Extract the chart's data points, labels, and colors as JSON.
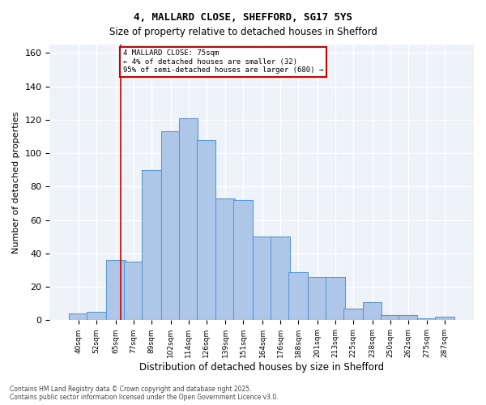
{
  "title1": "4, MALLARD CLOSE, SHEFFORD, SG17 5YS",
  "title2": "Size of property relative to detached houses in Shefford",
  "xlabel": "Distribution of detached houses by size in Shefford",
  "ylabel": "Number of detached properties",
  "bar_labels": [
    "40sqm",
    "52sqm",
    "65sqm",
    "77sqm",
    "89sqm",
    "102sqm",
    "114sqm",
    "126sqm",
    "139sqm",
    "151sqm",
    "164sqm",
    "176sqm",
    "188sqm",
    "201sqm",
    "213sqm",
    "225sqm",
    "238sqm",
    "250sqm",
    "262sqm",
    "275sqm",
    "287sqm"
  ],
  "bar_heights": [
    4,
    5,
    36,
    35,
    90,
    113,
    121,
    108,
    73,
    72,
    50,
    50,
    29,
    26,
    26,
    7,
    11,
    3,
    3,
    1,
    2
  ],
  "bar_color": "#aec6e8",
  "bar_edge_color": "#5b9bd5",
  "bg_color": "#eef2f9",
  "grid_color": "#ffffff",
  "vline_x": 75,
  "annotation_line1": "4 MALLARD CLOSE: 75sqm",
  "annotation_line2": "← 4% of detached houses are smaller (32)",
  "annotation_line3": "95% of semi-detached houses are larger (680) →",
  "annotation_box_color": "#cc0000",
  "footer1": "Contains HM Land Registry data © Crown copyright and database right 2025.",
  "footer2": "Contains public sector information licensed under the Open Government Licence v3.0.",
  "ylim": [
    0,
    165
  ],
  "bin_width": 13
}
